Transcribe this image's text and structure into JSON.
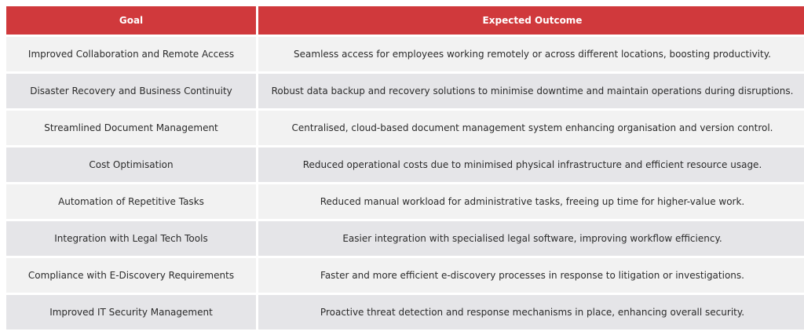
{
  "header": {
    "goal": "Goal",
    "outcome": "Expected Outcome"
  },
  "rows": [
    {
      "goal": "Improved Collaboration and Remote Access",
      "outcome": "Seamless access for employees working remotely or across different locations, boosting productivity."
    },
    {
      "goal": "Disaster Recovery and Business Continuity",
      "outcome": "Robust data backup and recovery solutions to minimise downtime and maintain operations during disruptions."
    },
    {
      "goal": "Streamlined Document Management",
      "outcome": "Centralised, cloud-based document management system enhancing organisation and version control."
    },
    {
      "goal": "Cost Optimisation",
      "outcome": "Reduced operational costs due to minimised physical infrastructure and efficient resource usage."
    },
    {
      "goal": "Automation of Repetitive Tasks",
      "outcome": "Reduced manual workload for administrative tasks, freeing up time for higher-value work."
    },
    {
      "goal": "Integration with Legal Tech Tools",
      "outcome": "Easier integration with specialised legal software, improving workflow efficiency."
    },
    {
      "goal": "Compliance with E-Discovery Requirements",
      "outcome": "Faster and more efficient e-discovery processes in response to litigation or investigations."
    },
    {
      "goal": "Improved IT Security Management",
      "outcome": "Proactive threat detection and response mechanisms in place, enhancing overall security."
    }
  ],
  "colors": {
    "header_bg": "#d0393c",
    "row_light": "#f2f2f2",
    "row_dark": "#e5e5e8"
  }
}
